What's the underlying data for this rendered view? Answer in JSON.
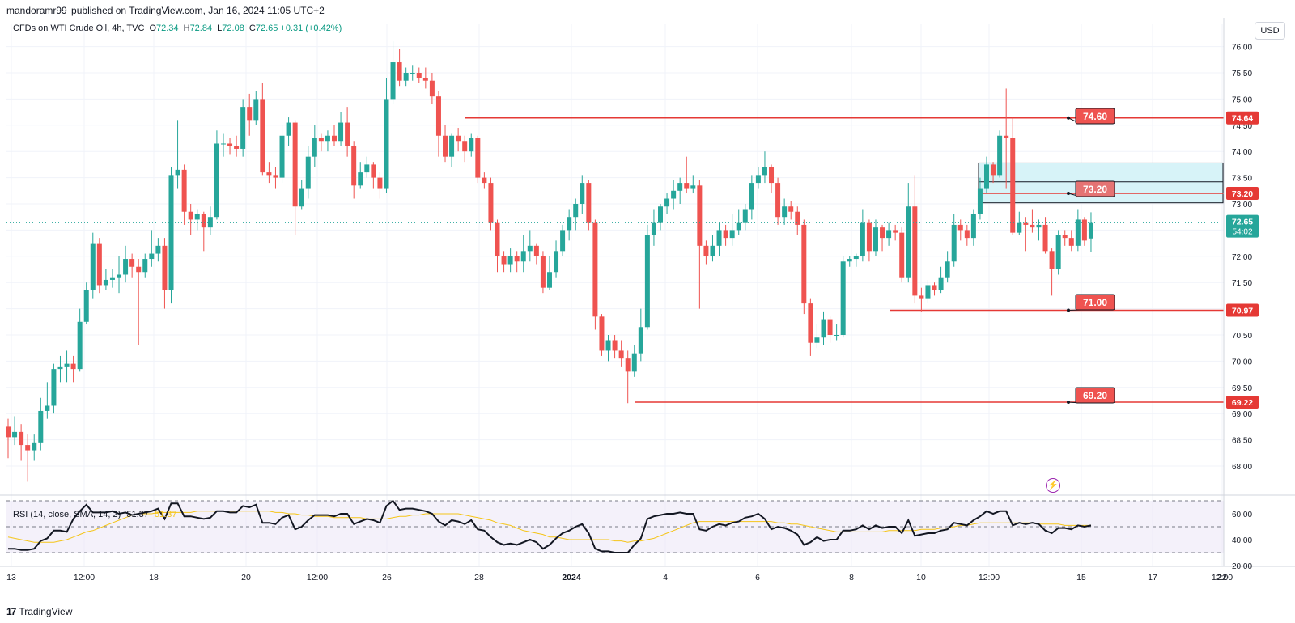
{
  "header": {
    "publisher": "mandoramr99",
    "published_text": "published on TradingView.com, Jan 16, 2024 11:05 UTC+2"
  },
  "symbol": {
    "title": "CFDs on WTI Crude Oil, 4h, TVC",
    "open_label": "O",
    "open": "72.34",
    "high_label": "H",
    "high": "72.84",
    "low_label": "L",
    "low": "72.08",
    "close_label": "C",
    "close": "72.65",
    "change": "+0.31 (+0.42%)"
  },
  "currency": "USD",
  "rsi_legend": {
    "label": "RSI (14, close, SMA, 14, 2)",
    "rsi_value": "51.37",
    "sma_value": "51.37"
  },
  "price_badges": {
    "last_price": "72.65",
    "countdown": "54:02",
    "level_1": "74.64",
    "level_2": "73.20",
    "level_3": "70.97",
    "level_4": "69.22"
  },
  "callouts": [
    "74.60",
    "73.20",
    "71.00",
    "69.20"
  ],
  "footer": {
    "brand": "TradingView"
  },
  "colors": {
    "up": "#26a69a",
    "down": "#ef5350",
    "level_line": "#e53935",
    "zone_fill": "#d7f3f8",
    "rsi_line": "#131722",
    "rsi_sma": "#f5c518",
    "rsi_band": "#ede7f6"
  },
  "chart_data": {
    "type": "candlestick",
    "title": "CFDs on WTI Crude Oil, 4h, TVC",
    "y_axis_ticks": [
      "76.00",
      "75.50",
      "75.00",
      "74.50",
      "74.00",
      "73.50",
      "73.00",
      "72.50",
      "72.00",
      "71.50",
      "71.00",
      "70.50",
      "70.00",
      "69.50",
      "69.00",
      "68.50",
      "68.00"
    ],
    "ylim": [
      67.5,
      76.3
    ],
    "x_axis_ticks": [
      "13",
      "12:00",
      "18",
      "20",
      "12:00",
      "26",
      "28",
      "2024",
      "4",
      "6",
      "8",
      "10",
      "12:00",
      "15",
      "17",
      "12:00",
      "22"
    ],
    "horizontal_levels": [
      {
        "price": 74.64,
        "label": "74.60"
      },
      {
        "price": 73.2,
        "label": "73.20"
      },
      {
        "price": 70.97,
        "label": "71.00"
      },
      {
        "price": 69.22,
        "label": "69.20"
      }
    ],
    "zone": {
      "low": 73.02,
      "high": 73.78
    },
    "candles": [
      [
        68.75,
        68.55,
        68.9,
        68.15
      ],
      [
        68.55,
        68.65,
        68.95,
        68.4
      ],
      [
        68.65,
        68.4,
        68.8,
        68.1
      ],
      [
        68.4,
        68.3,
        68.6,
        67.7
      ],
      [
        68.3,
        68.45,
        68.6,
        68.1
      ],
      [
        68.45,
        69.05,
        69.3,
        68.3
      ],
      [
        69.05,
        69.15,
        69.6,
        68.9
      ],
      [
        69.15,
        69.85,
        69.95,
        69.0
      ],
      [
        69.85,
        69.9,
        70.1,
        69.6
      ],
      [
        69.9,
        69.95,
        70.2,
        69.6
      ],
      [
        69.95,
        69.85,
        70.1,
        69.6
      ],
      [
        69.85,
        70.75,
        71.0,
        69.8
      ],
      [
        70.75,
        71.35,
        71.5,
        70.7
      ],
      [
        71.35,
        72.25,
        72.45,
        71.2
      ],
      [
        72.25,
        71.45,
        72.35,
        71.3
      ],
      [
        71.45,
        71.55,
        71.75,
        71.35
      ],
      [
        71.55,
        71.6,
        71.75,
        71.4
      ],
      [
        71.6,
        71.65,
        72.0,
        71.3
      ],
      [
        71.65,
        71.95,
        72.2,
        71.5
      ],
      [
        71.95,
        71.8,
        72.05,
        71.6
      ],
      [
        71.8,
        71.7,
        71.95,
        70.3
      ],
      [
        71.7,
        71.95,
        72.05,
        71.6
      ],
      [
        71.95,
        72.05,
        72.5,
        71.8
      ],
      [
        72.05,
        72.2,
        72.35,
        71.9
      ],
      [
        72.2,
        71.35,
        72.35,
        71.0
      ],
      [
        71.35,
        73.55,
        73.7,
        71.1
      ],
      [
        73.55,
        73.65,
        74.6,
        73.3
      ],
      [
        73.65,
        72.85,
        73.75,
        72.6
      ],
      [
        72.85,
        72.7,
        73.0,
        72.4
      ],
      [
        72.7,
        72.8,
        72.9,
        72.5
      ],
      [
        72.8,
        72.55,
        72.85,
        72.1
      ],
      [
        72.55,
        72.75,
        72.95,
        72.4
      ],
      [
        72.75,
        74.15,
        74.4,
        72.7
      ],
      [
        74.15,
        74.15,
        74.35,
        73.9
      ],
      [
        74.15,
        74.1,
        74.25,
        73.95
      ],
      [
        74.1,
        74.05,
        74.3,
        73.9
      ],
      [
        74.05,
        74.85,
        75.0,
        73.9
      ],
      [
        74.85,
        74.6,
        75.1,
        74.3
      ],
      [
        74.6,
        75.0,
        75.15,
        74.5
      ],
      [
        75.0,
        73.6,
        75.3,
        73.55
      ],
      [
        73.6,
        73.55,
        73.8,
        73.4
      ],
      [
        73.55,
        73.5,
        73.7,
        73.3
      ],
      [
        73.5,
        74.3,
        74.5,
        73.4
      ],
      [
        74.3,
        74.55,
        74.65,
        74.1
      ],
      [
        74.55,
        72.95,
        74.6,
        72.4
      ],
      [
        72.95,
        73.3,
        73.45,
        72.9
      ],
      [
        73.3,
        73.9,
        74.1,
        73.1
      ],
      [
        73.9,
        74.25,
        74.5,
        73.7
      ],
      [
        74.25,
        74.2,
        74.35,
        74.0
      ],
      [
        74.2,
        74.3,
        74.4,
        74.0
      ],
      [
        74.3,
        74.2,
        74.5,
        74.1
      ],
      [
        74.2,
        74.55,
        74.75,
        74.1
      ],
      [
        74.55,
        74.1,
        74.85,
        73.9
      ],
      [
        74.1,
        73.35,
        74.2,
        73.1
      ],
      [
        73.35,
        73.6,
        73.8,
        73.3
      ],
      [
        73.6,
        73.75,
        73.9,
        73.5
      ],
      [
        73.75,
        73.5,
        73.8,
        73.3
      ],
      [
        73.5,
        73.3,
        73.6,
        73.1
      ],
      [
        73.3,
        75.0,
        75.4,
        73.2
      ],
      [
        75.0,
        75.7,
        76.1,
        74.9
      ],
      [
        75.7,
        75.35,
        75.95,
        75.25
      ],
      [
        75.35,
        75.5,
        75.6,
        75.25
      ],
      [
        75.5,
        75.5,
        75.65,
        75.35
      ],
      [
        75.5,
        75.4,
        75.6,
        75.3
      ],
      [
        75.4,
        75.35,
        75.6,
        75.2
      ],
      [
        75.35,
        75.05,
        75.5,
        74.9
      ],
      [
        75.05,
        74.3,
        75.15,
        73.9
      ],
      [
        74.3,
        73.9,
        74.5,
        73.8
      ],
      [
        73.9,
        74.3,
        74.35,
        73.7
      ],
      [
        74.3,
        74.2,
        74.45,
        74.0
      ],
      [
        74.2,
        74.0,
        74.3,
        73.8
      ],
      [
        74.0,
        74.25,
        74.35,
        73.9
      ],
      [
        74.25,
        73.5,
        74.3,
        73.4
      ],
      [
        73.5,
        73.4,
        73.6,
        73.3
      ],
      [
        73.4,
        72.65,
        73.5,
        72.5
      ],
      [
        72.65,
        72.0,
        72.7,
        71.7
      ],
      [
        72.0,
        71.85,
        72.1,
        71.7
      ],
      [
        71.85,
        72.0,
        72.15,
        71.7
      ],
      [
        72.0,
        71.9,
        72.1,
        71.7
      ],
      [
        71.9,
        72.1,
        72.4,
        71.7
      ],
      [
        72.1,
        72.2,
        72.5,
        71.9
      ],
      [
        72.2,
        72.0,
        72.25,
        71.85
      ],
      [
        72.0,
        71.4,
        72.1,
        71.3
      ],
      [
        71.4,
        71.7,
        72.0,
        71.35
      ],
      [
        71.7,
        72.1,
        72.3,
        71.6
      ],
      [
        72.1,
        72.5,
        72.6,
        72.0
      ],
      [
        72.5,
        72.75,
        72.9,
        72.3
      ],
      [
        72.75,
        73.0,
        73.1,
        72.5
      ],
      [
        73.0,
        73.4,
        73.55,
        72.8
      ],
      [
        73.4,
        72.65,
        73.45,
        72.5
      ],
      [
        72.65,
        70.85,
        72.7,
        70.6
      ],
      [
        70.85,
        70.2,
        70.9,
        70.1
      ],
      [
        70.2,
        70.4,
        70.5,
        70.0
      ],
      [
        70.4,
        70.2,
        70.5,
        70.05
      ],
      [
        70.2,
        70.05,
        70.4,
        69.9
      ],
      [
        70.05,
        69.8,
        70.2,
        69.2
      ],
      [
        69.8,
        70.15,
        70.3,
        69.7
      ],
      [
        70.15,
        70.65,
        71.0,
        70.0
      ],
      [
        70.65,
        72.4,
        72.6,
        70.6
      ],
      [
        72.4,
        72.65,
        72.9,
        72.2
      ],
      [
        72.65,
        72.95,
        73.0,
        72.5
      ],
      [
        72.95,
        73.1,
        73.2,
        72.8
      ],
      [
        73.1,
        73.25,
        73.45,
        72.9
      ],
      [
        73.25,
        73.4,
        73.5,
        73.0
      ],
      [
        73.4,
        73.3,
        73.9,
        73.2
      ],
      [
        73.3,
        73.35,
        73.55,
        73.2
      ],
      [
        73.35,
        72.2,
        73.45,
        71.0
      ],
      [
        72.2,
        72.0,
        72.3,
        71.85
      ],
      [
        72.0,
        72.2,
        72.4,
        71.9
      ],
      [
        72.2,
        72.5,
        72.65,
        72.0
      ],
      [
        72.5,
        72.35,
        72.6,
        72.2
      ],
      [
        72.35,
        72.5,
        72.8,
        72.2
      ],
      [
        72.5,
        72.65,
        72.9,
        72.4
      ],
      [
        72.65,
        72.9,
        73.0,
        72.5
      ],
      [
        72.9,
        73.4,
        73.55,
        72.7
      ],
      [
        73.4,
        73.55,
        73.7,
        73.3
      ],
      [
        73.55,
        73.7,
        74.0,
        73.4
      ],
      [
        73.7,
        73.4,
        73.75,
        73.2
      ],
      [
        73.4,
        72.75,
        73.5,
        72.6
      ],
      [
        72.75,
        72.95,
        73.1,
        72.6
      ],
      [
        72.95,
        72.85,
        73.05,
        72.7
      ],
      [
        72.85,
        72.6,
        72.95,
        72.4
      ],
      [
        72.6,
        71.1,
        72.7,
        70.9
      ],
      [
        71.1,
        70.35,
        71.2,
        70.1
      ],
      [
        70.35,
        70.45,
        70.7,
        70.25
      ],
      [
        70.45,
        70.8,
        70.95,
        70.3
      ],
      [
        70.8,
        70.5,
        70.85,
        70.35
      ],
      [
        70.5,
        70.5,
        70.7,
        70.4
      ],
      [
        70.5,
        71.9,
        72.0,
        70.45
      ],
      [
        71.9,
        71.95,
        72.0,
        71.8
      ],
      [
        71.95,
        72.0,
        72.05,
        71.8
      ],
      [
        72.0,
        72.65,
        72.9,
        71.9
      ],
      [
        72.65,
        72.1,
        72.7,
        71.9
      ],
      [
        72.1,
        72.55,
        72.7,
        72.0
      ],
      [
        72.55,
        72.35,
        72.6,
        72.1
      ],
      [
        72.35,
        72.5,
        72.65,
        72.2
      ],
      [
        72.5,
        72.45,
        72.6,
        72.3
      ],
      [
        72.45,
        71.6,
        72.55,
        71.5
      ],
      [
        71.6,
        72.95,
        73.4,
        71.5
      ],
      [
        72.95,
        71.25,
        73.55,
        71.1
      ],
      [
        71.25,
        71.2,
        71.4,
        70.95
      ],
      [
        71.2,
        71.45,
        71.55,
        71.1
      ],
      [
        71.45,
        71.35,
        71.5,
        71.25
      ],
      [
        71.35,
        71.6,
        71.8,
        71.3
      ],
      [
        71.6,
        71.9,
        72.1,
        71.5
      ],
      [
        71.9,
        72.6,
        72.8,
        71.8
      ],
      [
        72.6,
        72.5,
        72.7,
        72.3
      ],
      [
        72.5,
        72.35,
        72.6,
        72.2
      ],
      [
        72.35,
        72.8,
        72.9,
        72.2
      ],
      [
        72.8,
        73.3,
        73.5,
        72.7
      ],
      [
        73.3,
        73.75,
        73.9,
        73.2
      ],
      [
        73.75,
        73.55,
        73.8,
        73.4
      ],
      [
        73.55,
        74.3,
        74.4,
        73.5
      ],
      [
        74.3,
        74.25,
        75.2,
        73.3
      ],
      [
        74.25,
        72.45,
        74.65,
        72.4
      ],
      [
        72.45,
        72.65,
        72.85,
        72.4
      ],
      [
        72.65,
        72.6,
        72.75,
        72.1
      ],
      [
        72.6,
        72.55,
        72.9,
        72.45
      ],
      [
        72.55,
        72.6,
        72.7,
        72.3
      ],
      [
        72.6,
        72.1,
        72.75,
        72.05
      ],
      [
        72.1,
        71.75,
        72.15,
        71.25
      ],
      [
        71.75,
        72.4,
        72.5,
        71.65
      ],
      [
        72.4,
        72.35,
        72.5,
        72.2
      ],
      [
        72.35,
        72.2,
        72.5,
        72.1
      ],
      [
        72.2,
        72.7,
        72.9,
        72.1
      ],
      [
        72.7,
        72.3,
        72.75,
        72.2
      ],
      [
        72.34,
        72.65,
        72.84,
        72.08
      ]
    ],
    "rsi": {
      "ylim": [
        20,
        70
      ],
      "y_axis_ticks": [
        "60.00",
        "40.00",
        "20.00"
      ],
      "bands": [
        30,
        50,
        70
      ],
      "values": [
        33,
        33,
        32,
        32,
        33,
        39,
        41,
        47,
        47,
        46,
        56,
        62,
        67,
        61,
        61,
        61,
        62,
        60,
        61,
        59,
        60,
        61,
        62,
        64,
        56,
        68,
        68,
        58,
        58,
        57,
        56,
        57,
        62,
        62,
        61,
        61,
        66,
        65,
        67,
        53,
        53,
        52,
        57,
        59,
        48,
        50,
        55,
        59,
        59,
        59,
        58,
        60,
        60,
        52,
        54,
        56,
        55,
        53,
        66,
        70,
        63,
        64,
        64,
        63,
        62,
        60,
        54,
        51,
        55,
        54,
        52,
        55,
        48,
        47,
        42,
        38,
        36,
        37,
        36,
        38,
        40,
        38,
        33,
        36,
        41,
        45,
        47,
        50,
        52,
        45,
        33,
        31,
        31,
        30,
        30,
        30,
        36,
        41,
        56,
        58,
        59,
        60,
        60,
        61,
        60,
        60,
        48,
        47,
        50,
        52,
        51,
        53,
        54,
        57,
        58,
        60,
        56,
        48,
        50,
        49,
        47,
        44,
        36,
        38,
        42,
        39,
        40,
        40,
        47,
        47,
        48,
        51,
        48,
        51,
        49,
        50,
        50,
        45,
        55,
        43,
        44,
        45,
        45,
        47,
        48,
        53,
        52,
        51,
        55,
        58,
        62,
        60,
        62,
        62,
        51,
        53,
        52,
        53,
        52,
        47,
        45,
        49,
        49,
        48,
        51,
        50,
        51
      ]
    },
    "rsi_sma": {
      "values": [
        42,
        41,
        40,
        39,
        38,
        38,
        38,
        38,
        39,
        40,
        42,
        44,
        46,
        47,
        49,
        51,
        53,
        55,
        57,
        59,
        60,
        60,
        60,
        61,
        61,
        61,
        61,
        61,
        61,
        62,
        62,
        62,
        62,
        62,
        62,
        62,
        62,
        62,
        62,
        62,
        62,
        61,
        61,
        60,
        60,
        59,
        59,
        58,
        58,
        58,
        57,
        57,
        57,
        57,
        57,
        56,
        56,
        56,
        56,
        57,
        58,
        58,
        59,
        59,
        60,
        60,
        60,
        60,
        60,
        60,
        59,
        58,
        57,
        56,
        55,
        53,
        52,
        51,
        49,
        47,
        46,
        45,
        44,
        42,
        42,
        41,
        40,
        40,
        40,
        40,
        40,
        40,
        40,
        39,
        39,
        38,
        39,
        39,
        40,
        41,
        43,
        45,
        47,
        49,
        51,
        53,
        54,
        54,
        54,
        54,
        54,
        54,
        54,
        54,
        54,
        54,
        54,
        54,
        53,
        53,
        52,
        52,
        51,
        50,
        49,
        48,
        47,
        46,
        46,
        46,
        46,
        46,
        46,
        46,
        46,
        47,
        47,
        47,
        47,
        47,
        48,
        48,
        48,
        49,
        49,
        50,
        51,
        51,
        52,
        53,
        53,
        53,
        53,
        53,
        53,
        53,
        53,
        53,
        52,
        52,
        52,
        52,
        51,
        51,
        51,
        51,
        51
      ]
    }
  }
}
